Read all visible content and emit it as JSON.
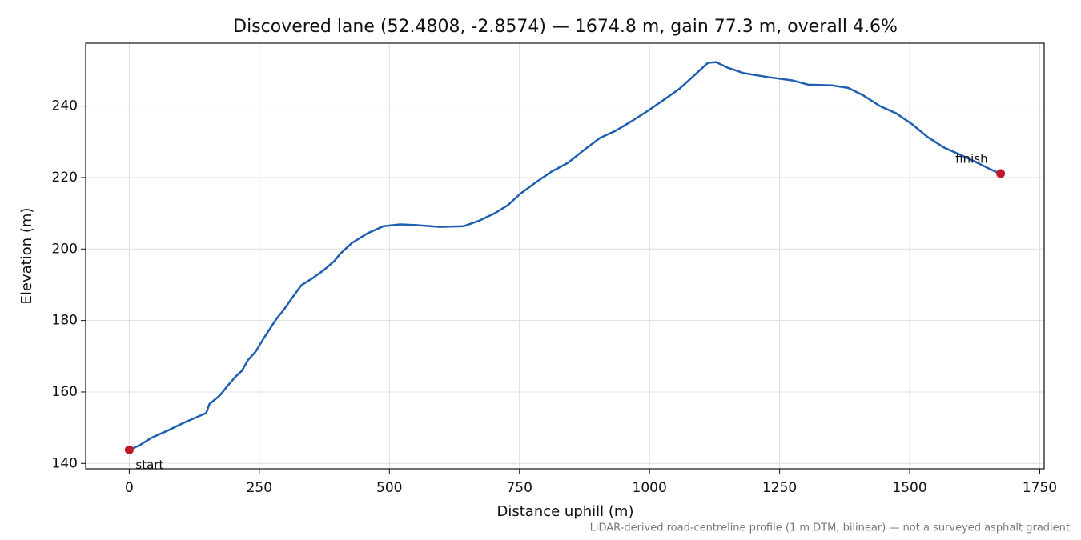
{
  "chart_data": {
    "type": "line",
    "title": "Discovered lane (52.4808, -2.8574) — 1674.8 m, gain 77.3 m, overall 4.6%",
    "xlabel": "Distance uphill (m)",
    "ylabel": "Elevation (m)",
    "note": "LiDAR-derived road-centreline profile (1 m DTM, bilinear) — not a surveyed asphalt gradient",
    "x": [
      0,
      20,
      43,
      74,
      105,
      148,
      154,
      174,
      189,
      205,
      217,
      228,
      243,
      258,
      282,
      297,
      312,
      331,
      351,
      374,
      394,
      405,
      428,
      458,
      489,
      520,
      551,
      597,
      643,
      674,
      705,
      728,
      751,
      782,
      812,
      843,
      874,
      905,
      935,
      966,
      997,
      1028,
      1058,
      1089,
      1112,
      1128,
      1151,
      1182,
      1228,
      1274,
      1305,
      1351,
      1382,
      1412,
      1443,
      1474,
      1505,
      1535,
      1566,
      1597,
      1628,
      1658,
      1674.8
    ],
    "values": [
      143.8,
      145.1,
      147.2,
      149.2,
      151.4,
      154.1,
      156.6,
      159.0,
      161.7,
      164.4,
      166.0,
      168.9,
      171.3,
      174.9,
      180.3,
      183.0,
      186.1,
      189.9,
      191.7,
      194.1,
      196.6,
      198.6,
      201.7,
      204.4,
      206.4,
      206.9,
      206.7,
      206.2,
      206.4,
      208.0,
      210.2,
      212.3,
      215.4,
      218.7,
      221.7,
      224.1,
      227.7,
      231.1,
      233.1,
      235.8,
      238.7,
      241.8,
      244.9,
      249.0,
      252.1,
      252.3,
      250.7,
      249.2,
      248.1,
      247.2,
      246.0,
      245.8,
      245.1,
      242.9,
      240.0,
      238.0,
      234.9,
      231.3,
      228.4,
      226.4,
      224.3,
      222.1,
      221.1
    ],
    "color": "#1f5fb0",
    "markers": [
      {
        "label": "start",
        "x": 0,
        "y": 143.8,
        "color": "#c0182a"
      },
      {
        "label": "finish",
        "x": 1674.8,
        "y": 221.1,
        "color": "#c0182a"
      }
    ],
    "xlim": [
      -83.74,
      1758.54
    ],
    "ylim": [
      138.5,
      257.6
    ],
    "xticks": [
      0,
      250,
      500,
      750,
      1000,
      1250,
      1500,
      1750
    ],
    "yticks": [
      140,
      160,
      180,
      200,
      220,
      240
    ],
    "grid": true
  }
}
